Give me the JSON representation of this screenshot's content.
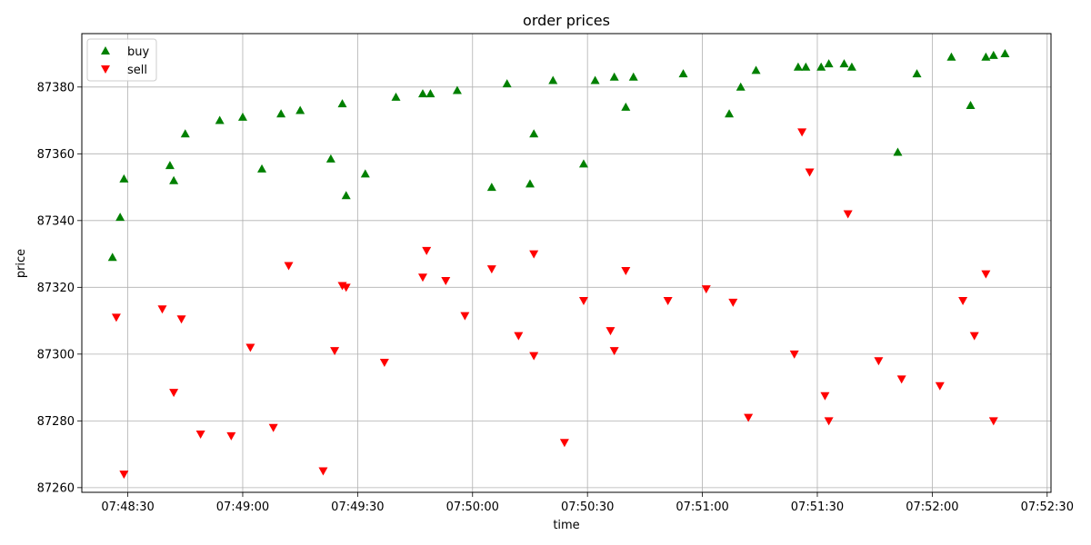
{
  "chart_data": {
    "type": "scatter",
    "title": "order prices",
    "xlabel": "time",
    "ylabel": "price",
    "grid": true,
    "legend_position": "top-left",
    "x_ticks": [
      "07:48:30",
      "07:49:00",
      "07:49:30",
      "07:50:00",
      "07:50:30",
      "07:51:00",
      "07:51:30",
      "07:52:00",
      "07:52:30"
    ],
    "y_ticks": [
      87260,
      87280,
      87300,
      87320,
      87340,
      87360,
      87380
    ],
    "xlim": [
      "07:48:18",
      "07:52:31"
    ],
    "ylim": [
      87258.6,
      87396.0
    ],
    "series": [
      {
        "name": "buy",
        "marker": "triangle-up",
        "color": "#008000",
        "points": [
          [
            "07:48:26",
            87329
          ],
          [
            "07:48:28",
            87341
          ],
          [
            "07:48:29",
            87352.5
          ],
          [
            "07:48:41",
            87356.5
          ],
          [
            "07:48:42",
            87352
          ],
          [
            "07:48:45",
            87366
          ],
          [
            "07:48:54",
            87370
          ],
          [
            "07:49:00",
            87371
          ],
          [
            "07:49:05",
            87355.5
          ],
          [
            "07:49:10",
            87372
          ],
          [
            "07:49:15",
            87373
          ],
          [
            "07:49:23",
            87358.5
          ],
          [
            "07:49:26",
            87375
          ],
          [
            "07:49:27",
            87347.5
          ],
          [
            "07:49:32",
            87354
          ],
          [
            "07:49:40",
            87377
          ],
          [
            "07:49:47",
            87378
          ],
          [
            "07:49:49",
            87378
          ],
          [
            "07:49:56",
            87379
          ],
          [
            "07:50:05",
            87350
          ],
          [
            "07:50:09",
            87381
          ],
          [
            "07:50:15",
            87351
          ],
          [
            "07:50:16",
            87366
          ],
          [
            "07:50:21",
            87382
          ],
          [
            "07:50:29",
            87357
          ],
          [
            "07:50:32",
            87382
          ],
          [
            "07:50:37",
            87383
          ],
          [
            "07:50:40",
            87374
          ],
          [
            "07:50:42",
            87383
          ],
          [
            "07:50:55",
            87384
          ],
          [
            "07:51:07",
            87372
          ],
          [
            "07:51:10",
            87380
          ],
          [
            "07:51:14",
            87385
          ],
          [
            "07:51:25",
            87386
          ],
          [
            "07:51:27",
            87386
          ],
          [
            "07:51:31",
            87386
          ],
          [
            "07:51:33",
            87387
          ],
          [
            "07:51:37",
            87387
          ],
          [
            "07:51:39",
            87386
          ],
          [
            "07:51:51",
            87360.5
          ],
          [
            "07:51:56",
            87384
          ],
          [
            "07:52:05",
            87389
          ],
          [
            "07:52:10",
            87374.5
          ],
          [
            "07:52:14",
            87389
          ],
          [
            "07:52:16",
            87389.5
          ],
          [
            "07:52:19",
            87390
          ]
        ]
      },
      {
        "name": "sell",
        "marker": "triangle-down",
        "color": "#ff0000",
        "points": [
          [
            "07:48:27",
            87311
          ],
          [
            "07:48:29",
            87264
          ],
          [
            "07:48:39",
            87313.5
          ],
          [
            "07:48:42",
            87288.5
          ],
          [
            "07:48:44",
            87310.5
          ],
          [
            "07:48:49",
            87276
          ],
          [
            "07:48:57",
            87275.5
          ],
          [
            "07:49:02",
            87302
          ],
          [
            "07:49:08",
            87278
          ],
          [
            "07:49:12",
            87326.5
          ],
          [
            "07:49:21",
            87265
          ],
          [
            "07:49:24",
            87301
          ],
          [
            "07:49:26",
            87320.5
          ],
          [
            "07:49:27",
            87320
          ],
          [
            "07:49:37",
            87297.5
          ],
          [
            "07:49:47",
            87323
          ],
          [
            "07:49:48",
            87331
          ],
          [
            "07:49:53",
            87322
          ],
          [
            "07:49:58",
            87311.5
          ],
          [
            "07:50:05",
            87325.5
          ],
          [
            "07:50:12",
            87305.5
          ],
          [
            "07:50:16",
            87330
          ],
          [
            "07:50:16",
            87299.5
          ],
          [
            "07:50:24",
            87273.5
          ],
          [
            "07:50:29",
            87316
          ],
          [
            "07:50:36",
            87307
          ],
          [
            "07:50:37",
            87301
          ],
          [
            "07:50:40",
            87325
          ],
          [
            "07:50:51",
            87316
          ],
          [
            "07:51:01",
            87319.5
          ],
          [
            "07:51:08",
            87315.5
          ],
          [
            "07:51:12",
            87281
          ],
          [
            "07:51:24",
            87300
          ],
          [
            "07:51:26",
            87366.5
          ],
          [
            "07:51:28",
            87354.5
          ],
          [
            "07:51:32",
            87287.5
          ],
          [
            "07:51:33",
            87280
          ],
          [
            "07:51:38",
            87342
          ],
          [
            "07:51:46",
            87298
          ],
          [
            "07:51:52",
            87292.5
          ],
          [
            "07:52:02",
            87290.5
          ],
          [
            "07:52:08",
            87316
          ],
          [
            "07:52:11",
            87305.5
          ],
          [
            "07:52:14",
            87324
          ],
          [
            "07:52:16",
            87280
          ]
        ]
      }
    ]
  }
}
